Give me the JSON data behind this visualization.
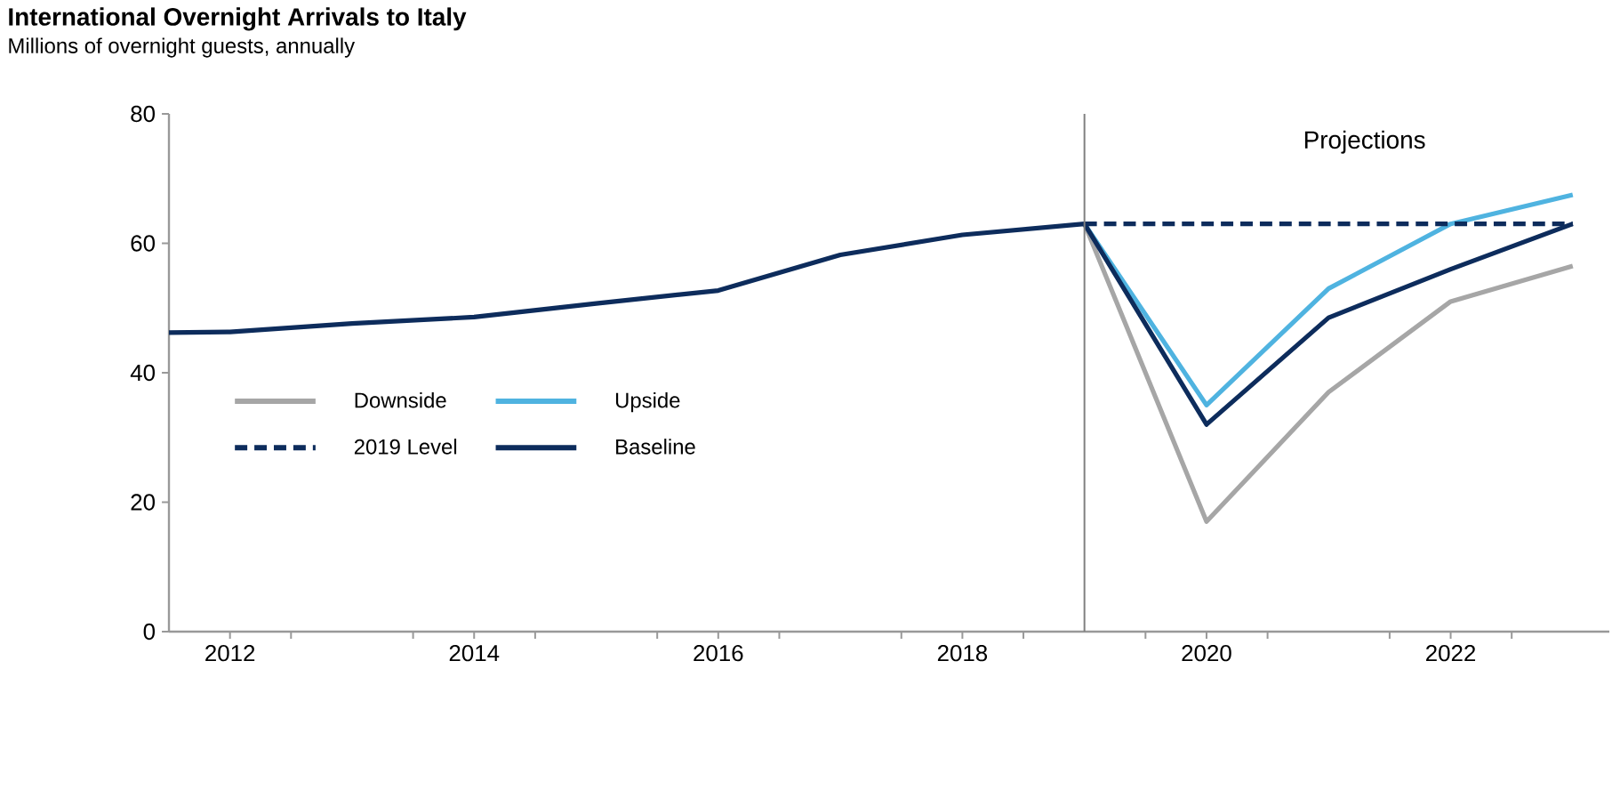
{
  "chart_data": {
    "type": "line",
    "title": "International Overnight Arrivals to Italy",
    "subtitle": "Millions of overnight guests, annually",
    "xlim": [
      2011.5,
      2023.3
    ],
    "ylim": [
      0,
      80
    ],
    "yticks": [
      0,
      20,
      40,
      60,
      80
    ],
    "xticks": [
      2012,
      2014,
      2016,
      2018,
      2020,
      2022,
      {
        "value": 2012.5,
        "label": null
      },
      {
        "value": 2013.5,
        "label": null
      },
      {
        "value": 2014.5,
        "label": null
      },
      {
        "value": 2015.5,
        "label": null
      },
      {
        "value": 2016.5,
        "label": null
      },
      {
        "value": 2017.5,
        "label": null
      },
      {
        "value": 2018.5,
        "label": null
      },
      {
        "value": 2019.5,
        "label": null
      },
      {
        "value": 2020.5,
        "label": null
      },
      {
        "value": 2021.5,
        "label": null
      },
      {
        "value": 2022.5,
        "label": null
      }
    ],
    "grid": false,
    "legend": "left",
    "marker": "none",
    "ref_lines": [
      {
        "axis": "x",
        "value": 2019,
        "color": "#808080"
      }
    ],
    "annotations": [
      "Projections"
    ],
    "series": [
      {
        "name": "Downside",
        "color": "#a6a6a6",
        "line_style": "solid",
        "x": [
          2019,
          2020,
          2021,
          2022,
          2023
        ],
        "values": [
          63,
          17,
          37,
          51,
          56.5
        ]
      },
      {
        "name": "Upside",
        "color": "#4fb3e0",
        "line_style": "solid",
        "x": [
          2019,
          2020,
          2021,
          2022,
          2023
        ],
        "values": [
          63,
          35,
          53,
          63,
          67.5
        ]
      },
      {
        "name": "2019 Level",
        "color": "#0d2c5c",
        "line_style": "dashed",
        "x": [
          2019,
          2023
        ],
        "values": [
          63,
          63
        ]
      },
      {
        "name": "Baseline",
        "color": "#0d2c5c",
        "line_style": "solid",
        "x": [
          2011.5,
          2012,
          2013,
          2014,
          2015,
          2016,
          2017,
          2018,
          2019,
          2020,
          2021,
          2022,
          2023
        ],
        "values": [
          46.2,
          46.3,
          47.6,
          48.6,
          50.7,
          52.7,
          58.2,
          61.3,
          63,
          32,
          48.5,
          56,
          63
        ]
      }
    ]
  }
}
